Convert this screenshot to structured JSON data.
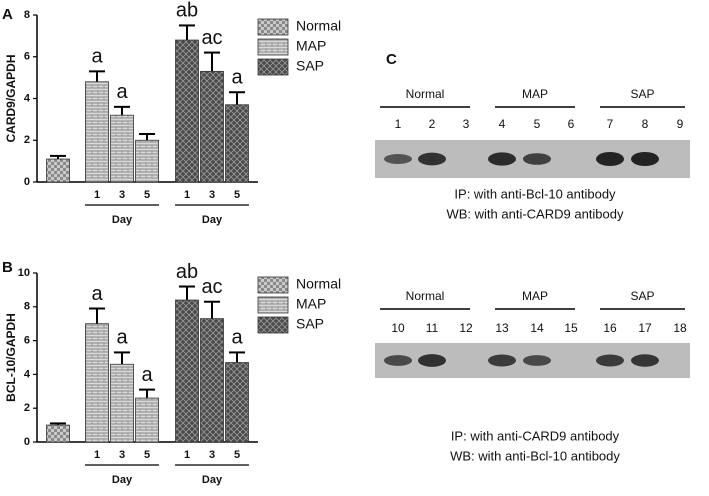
{
  "chart_data": [
    {
      "type": "bar",
      "panel": "A",
      "y_label": "CARD9/GAPDH",
      "categories": [
        null,
        "1",
        "3",
        "5",
        "1",
        "3",
        "5"
      ],
      "x_group_labels": [
        "Day",
        "Day"
      ],
      "ylim": [
        0,
        8
      ],
      "yticks": [
        0,
        2,
        4,
        6,
        8
      ],
      "series": [
        {
          "name": "Normal",
          "color": "#8a8a8a",
          "values": [
            1.1,
            null,
            null,
            null,
            null,
            null,
            null
          ],
          "errors": [
            0.15,
            null,
            null,
            null,
            null,
            null,
            null
          ],
          "annotations": [
            null,
            null,
            null,
            null,
            null,
            null,
            null
          ]
        },
        {
          "name": "MAP",
          "color": "#d8d8d8",
          "values": [
            null,
            4.8,
            3.2,
            2.0,
            null,
            null,
            null
          ],
          "errors": [
            null,
            0.5,
            0.4,
            0.3,
            null,
            null,
            null
          ],
          "annotations": [
            null,
            "a",
            "a",
            null,
            null,
            null,
            null
          ]
        },
        {
          "name": "SAP",
          "color": "#4a4a4a",
          "values": [
            null,
            null,
            null,
            null,
            6.8,
            5.3,
            3.7
          ],
          "errors": [
            null,
            null,
            null,
            null,
            0.7,
            0.9,
            0.6
          ],
          "annotations": [
            null,
            null,
            null,
            null,
            "ab",
            "ac",
            "a"
          ]
        }
      ]
    },
    {
      "type": "bar",
      "panel": "B",
      "y_label": "BCL-10/GAPDH",
      "categories": [
        null,
        "1",
        "3",
        "5",
        "1",
        "3",
        "5"
      ],
      "x_group_labels": [
        "Day",
        "Day"
      ],
      "ylim": [
        0,
        10
      ],
      "yticks": [
        0,
        2,
        4,
        6,
        8,
        10
      ],
      "series": [
        {
          "name": "Normal",
          "color": "#8a8a8a",
          "values": [
            1.0,
            null,
            null,
            null,
            null,
            null,
            null
          ],
          "errors": [
            0.1,
            null,
            null,
            null,
            null,
            null,
            null
          ],
          "annotations": [
            null,
            null,
            null,
            null,
            null,
            null,
            null
          ]
        },
        {
          "name": "MAP",
          "color": "#d8d8d8",
          "values": [
            null,
            7.0,
            4.6,
            2.6,
            null,
            null,
            null
          ],
          "errors": [
            null,
            0.9,
            0.7,
            0.5,
            null,
            null,
            null
          ],
          "annotations": [
            null,
            "a",
            "a",
            "a",
            null,
            null,
            null
          ]
        },
        {
          "name": "SAP",
          "color": "#4a4a4a",
          "values": [
            null,
            null,
            null,
            null,
            8.4,
            7.3,
            4.7
          ],
          "errors": [
            null,
            null,
            null,
            null,
            0.8,
            1.0,
            0.6
          ],
          "annotations": [
            null,
            null,
            null,
            null,
            "ab",
            "ac",
            "a"
          ]
        }
      ]
    }
  ],
  "blots": {
    "panel": "C",
    "blocks": [
      {
        "groups": [
          "Normal",
          "MAP",
          "SAP"
        ],
        "lanes": [
          "1",
          "2",
          "3",
          "4",
          "5",
          "6",
          "7",
          "8",
          "9"
        ],
        "captions": [
          "IP: with anti-Bcl-10 antibody",
          "WB: with anti-CARD9 antibody"
        ]
      },
      {
        "groups": [
          "Normal",
          "MAP",
          "SAP"
        ],
        "lanes": [
          "10",
          "11",
          "12",
          "13",
          "14",
          "15",
          "16",
          "17",
          "18"
        ],
        "captions": [
          "IP: with anti-CARD9 antibody",
          "WB: with anti-Bcl-10 antibody"
        ]
      }
    ]
  }
}
